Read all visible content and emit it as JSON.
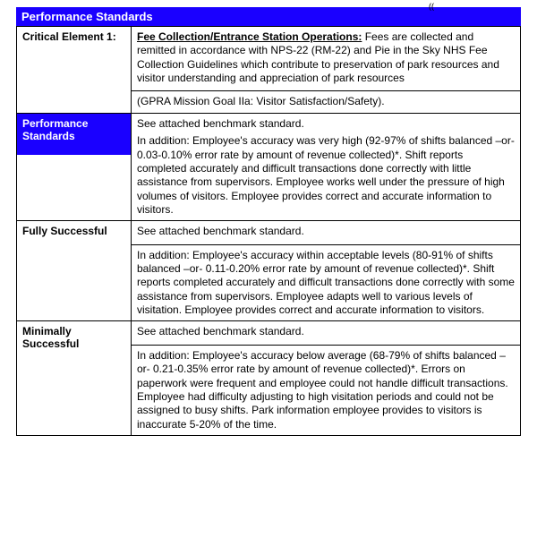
{
  "topFragment": "((",
  "header": "Performance Standards",
  "colors": {
    "band": "#1a00ff",
    "text": "#000000",
    "bg": "#ffffff"
  },
  "critEl": {
    "label": "Critical Element 1:",
    "titleBold": "Fee Collection/Entrance Station Operations:",
    "body": "  Fees are collected and remitted in accordance with NPS-22 (RM-22) and Pie in the Sky NHS Fee Collection Guidelines which contribute to preservation of park resources and visitor understanding and appreciation of park resources",
    "gpra": "(GPRA Mission Goal IIa: Visitor Satisfaction/Safety)."
  },
  "perfStd": {
    "label": "Performance Standards",
    "line1": "See attached benchmark standard.",
    "line2": "In addition:  Employee's accuracy was very high (92-97% of shifts balanced –or- 0.03-0.10% error rate by amount of revenue collected)*.  Shift reports completed accurately and difficult transactions done correctly with little assistance from supervisors.  Employee works well under the pressure of high volumes of visitors.  Employee provides correct and accurate information to visitors."
  },
  "fully": {
    "label": "Fully Successful",
    "line1": "See attached benchmark standard.",
    "line2": "In addition:  Employee's accuracy within acceptable levels (80-91% of shifts balanced –or- 0.11-0.20% error rate by amount of revenue collected)*.  Shift reports completed accurately and difficult transactions done correctly with some assistance from supervisors.  Employee adapts well to various levels of visitation.  Employee provides correct and accurate information to visitors."
  },
  "min": {
    "label": "Minimally Successful",
    "line1": "See attached benchmark standard.",
    "line2": "In addition:  Employee's accuracy below average (68-79% of shifts balanced –or- 0.21-0.35% error rate by amount of revenue collected)*.  Errors on paperwork were frequent and employee could not handle difficult transactions.  Employee had difficulty adjusting to high visitation periods and could not be assigned to busy shifts.  Park information employee provides to visitors is inaccurate 5-20% of the time."
  }
}
